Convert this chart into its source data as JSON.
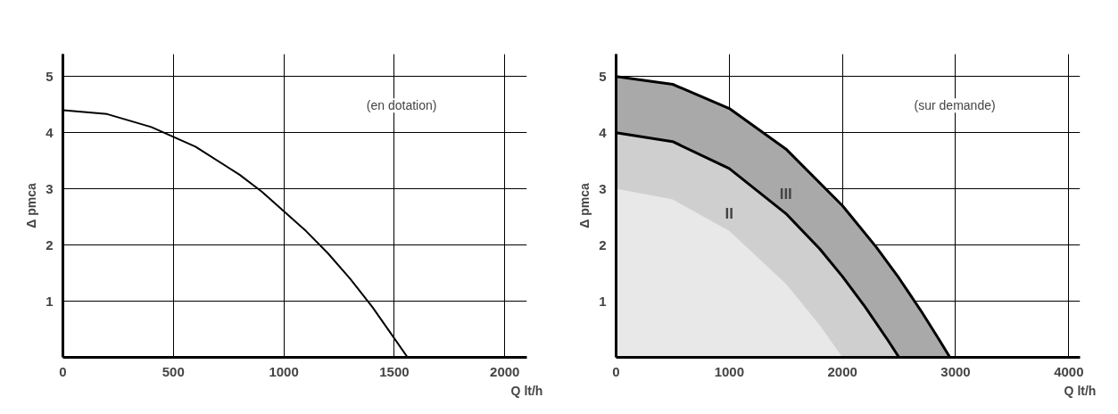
{
  "chart_data": [
    {
      "type": "line",
      "xlabel": "Q lt/h",
      "ylabel": "Δ pmca",
      "annotations": [
        "(en dotation)"
      ],
      "xlim": [
        0,
        2100
      ],
      "ylim": [
        0,
        5.4
      ],
      "xticks": [
        0,
        500,
        1000,
        1500,
        2000
      ],
      "yticks": [
        1,
        2,
        3,
        4,
        5
      ],
      "grid": true,
      "series": [
        {
          "color": "#000000",
          "x": [
            0,
            200,
            400,
            600,
            800,
            900,
            1000,
            1100,
            1200,
            1300,
            1400,
            1480,
            1560
          ],
          "values": [
            4.4,
            4.33,
            4.1,
            3.75,
            3.25,
            2.95,
            2.6,
            2.25,
            1.85,
            1.4,
            0.9,
            0.45,
            0
          ]
        }
      ]
    },
    {
      "type": "area",
      "xlabel": "Q lt/h",
      "ylabel": "Δ pmca",
      "annotations": [
        "(sur demande)"
      ],
      "xlim": [
        0,
        4100
      ],
      "ylim": [
        0,
        5.4
      ],
      "xticks": [
        0,
        1000,
        2000,
        3000,
        4000
      ],
      "yticks": [
        1,
        2,
        3,
        4,
        5
      ],
      "grid": true,
      "series": [
        {
          "name": "III",
          "color": "#a9a9a9",
          "x": [
            0,
            500,
            1000,
            1500,
            2000,
            2300,
            2500,
            2700,
            2850,
            2950
          ],
          "values": [
            5,
            4.86,
            4.43,
            3.71,
            2.7,
            1.96,
            1.41,
            0.81,
            0.33,
            0
          ]
        },
        {
          "name": "II",
          "color": "#cfcfcf",
          "x": [
            0,
            500,
            1000,
            1500,
            1800,
            2000,
            2200,
            2400,
            2500
          ],
          "values": [
            4,
            3.84,
            3.36,
            2.56,
            1.93,
            1.44,
            0.9,
            0.31,
            0
          ]
        },
        {
          "color": "#e8e8e8",
          "x": [
            0,
            500,
            1000,
            1500,
            1800,
            2000
          ],
          "values": [
            3,
            2.81,
            2.25,
            1.31,
            0.57,
            0
          ]
        }
      ]
    }
  ]
}
